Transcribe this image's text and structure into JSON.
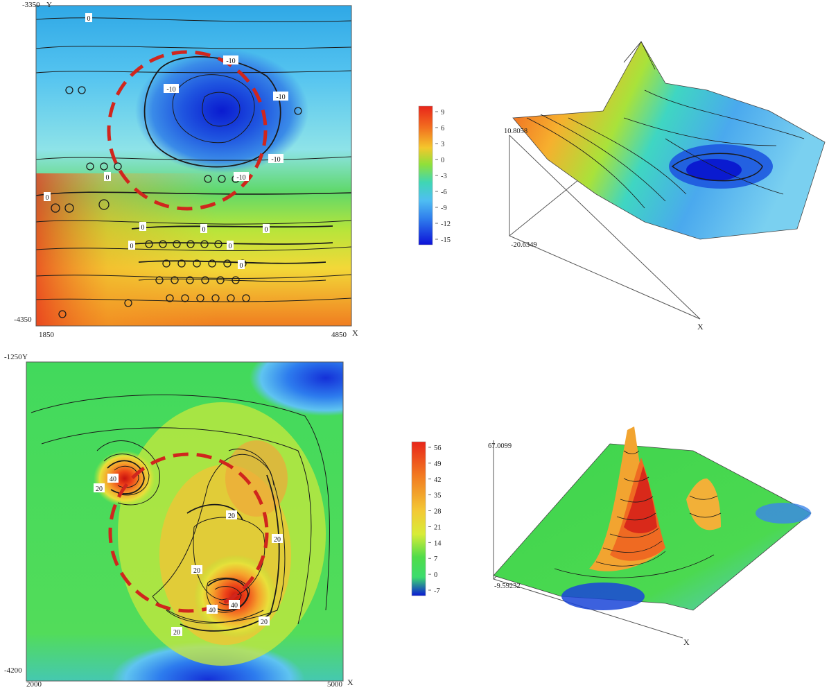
{
  "chart_data": [
    {
      "type": "heatmap",
      "subtype": "contour-map",
      "colormap": "jet",
      "x_axis": {
        "label": "X",
        "min": 1850,
        "max": 4850,
        "tick_labels": [
          "1850",
          "4850"
        ]
      },
      "y_axis": {
        "label": "Y",
        "min": -4350,
        "max": -3350,
        "tick_labels": [
          "-3350",
          "-4350"
        ]
      },
      "color_scale": {
        "range": [
          -15,
          9
        ],
        "ticks": [
          "9",
          "6",
          "3",
          "0",
          "-3",
          "-6",
          "-9",
          "-12",
          "-15"
        ]
      },
      "contour_labels": [
        "0",
        "-10",
        "-10",
        "-10",
        "-10",
        "-10",
        "0",
        "0",
        "0",
        "0",
        "0",
        "0",
        "0",
        "0"
      ],
      "highlight": "red dashed circle around the -10 low"
    },
    {
      "type": "surface",
      "colormap": "jet",
      "z_range": [
        -20.6349,
        10.8058
      ],
      "z_tick_labels": [
        "10.8058",
        "-20.6349"
      ],
      "x_axis_label": "X"
    },
    {
      "type": "heatmap",
      "subtype": "contour-map",
      "colormap": "jet",
      "x_axis": {
        "label": "X",
        "min": 2000,
        "max": 5000,
        "tick_labels": [
          "2000",
          "5000"
        ]
      },
      "y_axis": {
        "label": "Y",
        "min": -4200,
        "max": -1250,
        "tick_labels": [
          "-1250",
          "-4200"
        ]
      },
      "color_scale": {
        "range": [
          -7,
          56
        ],
        "ticks": [
          "56",
          "49",
          "42",
          "35",
          "28",
          "21",
          "14",
          "7",
          "0",
          "-7"
        ]
      },
      "contour_labels": [
        "40",
        "20",
        "20",
        "20",
        "20",
        "40",
        "40",
        "20",
        "20"
      ],
      "highlight": "red dashed circle between the peaks"
    },
    {
      "type": "surface",
      "colormap": "jet",
      "z_range": [
        -9.59232,
        67.0099
      ],
      "z_tick_labels": [
        "67.0099",
        "-9.59232"
      ],
      "x_axis_label": "X"
    }
  ]
}
